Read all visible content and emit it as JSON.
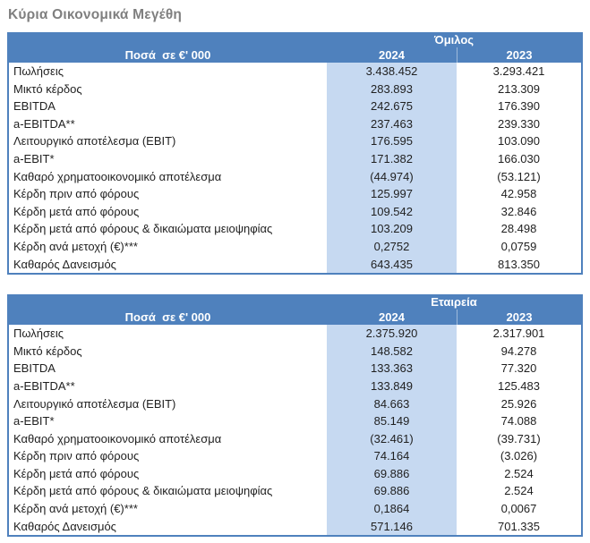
{
  "page_title": "Κύρια Οικονομικά Μεγέθη",
  "colors": {
    "header_blue": "#4f81bd",
    "column_2024_highlight": "#c6d9f1",
    "title_gray": "#7f7f7f",
    "table_border": "#4f81bd"
  },
  "tables": [
    {
      "scope": "Όμιλος",
      "amounts_header": "Ποσά  σε €' 000",
      "years": [
        "2024",
        "2023"
      ],
      "rows": [
        {
          "label": "Πωλήσεις",
          "v2024": "3.438.452",
          "v2023": "3.293.421"
        },
        {
          "label": "Μικτό κέρδος",
          "v2024": "283.893",
          "v2023": "213.309"
        },
        {
          "label": "EBITDA",
          "v2024": "242.675",
          "v2023": "176.390"
        },
        {
          "label": "a-EBITDA**",
          "v2024": "237.463",
          "v2023": "239.330"
        },
        {
          "label": "Λειτουργικό αποτέλεσμα (EBIT)",
          "v2024": "176.595",
          "v2023": "103.090"
        },
        {
          "label": "a-EBIT*",
          "v2024": "171.382",
          "v2023": "166.030"
        },
        {
          "label": "Καθαρό χρηματοοικονομικό αποτέλεσμα",
          "v2024": "(44.974)",
          "v2023": "(53.121)"
        },
        {
          "label": "Κέρδη πριν από φόρους",
          "v2024": "125.997",
          "v2023": "42.958"
        },
        {
          "label": "Κέρδη μετά από φόρους",
          "v2024": "109.542",
          "v2023": "32.846"
        },
        {
          "label": "Κέρδη μετά από φόρους & δικαιώματα μειοψηφίας",
          "v2024": "103.209",
          "v2023": "28.498"
        },
        {
          "label": "Κέρδη ανά μετοχή (€)***",
          "v2024": "0,2752",
          "v2023": "0,0759"
        },
        {
          "label": "Καθαρός Δανεισμός",
          "v2024": "643.435",
          "v2023": "813.350"
        }
      ]
    },
    {
      "scope": "Εταιρεία",
      "amounts_header": "Ποσά  σε €' 000",
      "years": [
        "2024",
        "2023"
      ],
      "rows": [
        {
          "label": "Πωλήσεις",
          "v2024": "2.375.920",
          "v2023": "2.317.901"
        },
        {
          "label": "Μικτό κέρδος",
          "v2024": "148.582",
          "v2023": "94.278"
        },
        {
          "label": "EBITDA",
          "v2024": "133.363",
          "v2023": "77.320"
        },
        {
          "label": "a-EBITDA**",
          "v2024": "133.849",
          "v2023": "125.483"
        },
        {
          "label": "Λειτουργικό αποτέλεσμα (EBIT)",
          "v2024": "84.663",
          "v2023": "25.926"
        },
        {
          "label": "a-EBIT*",
          "v2024": "85.149",
          "v2023": "74.088"
        },
        {
          "label": "Καθαρό χρηματοοικονομικό αποτέλεσμα",
          "v2024": "(32.461)",
          "v2023": "(39.731)"
        },
        {
          "label": "Κέρδη πριν από φόρους",
          "v2024": "74.164",
          "v2023": "(3.026)"
        },
        {
          "label": "Κέρδη μετά από φόρους",
          "v2024": "69.886",
          "v2023": "2.524"
        },
        {
          "label": "Κέρδη μετά από φόρους & δικαιώματα μειοψηφίας",
          "v2024": "69.886",
          "v2023": "2.524"
        },
        {
          "label": "Κέρδη ανά μετοχή (€)***",
          "v2024": "0,1864",
          "v2023": "0,0067"
        },
        {
          "label": "Καθαρός Δανεισμός",
          "v2024": "571.146",
          "v2023": "701.335"
        }
      ]
    }
  ]
}
